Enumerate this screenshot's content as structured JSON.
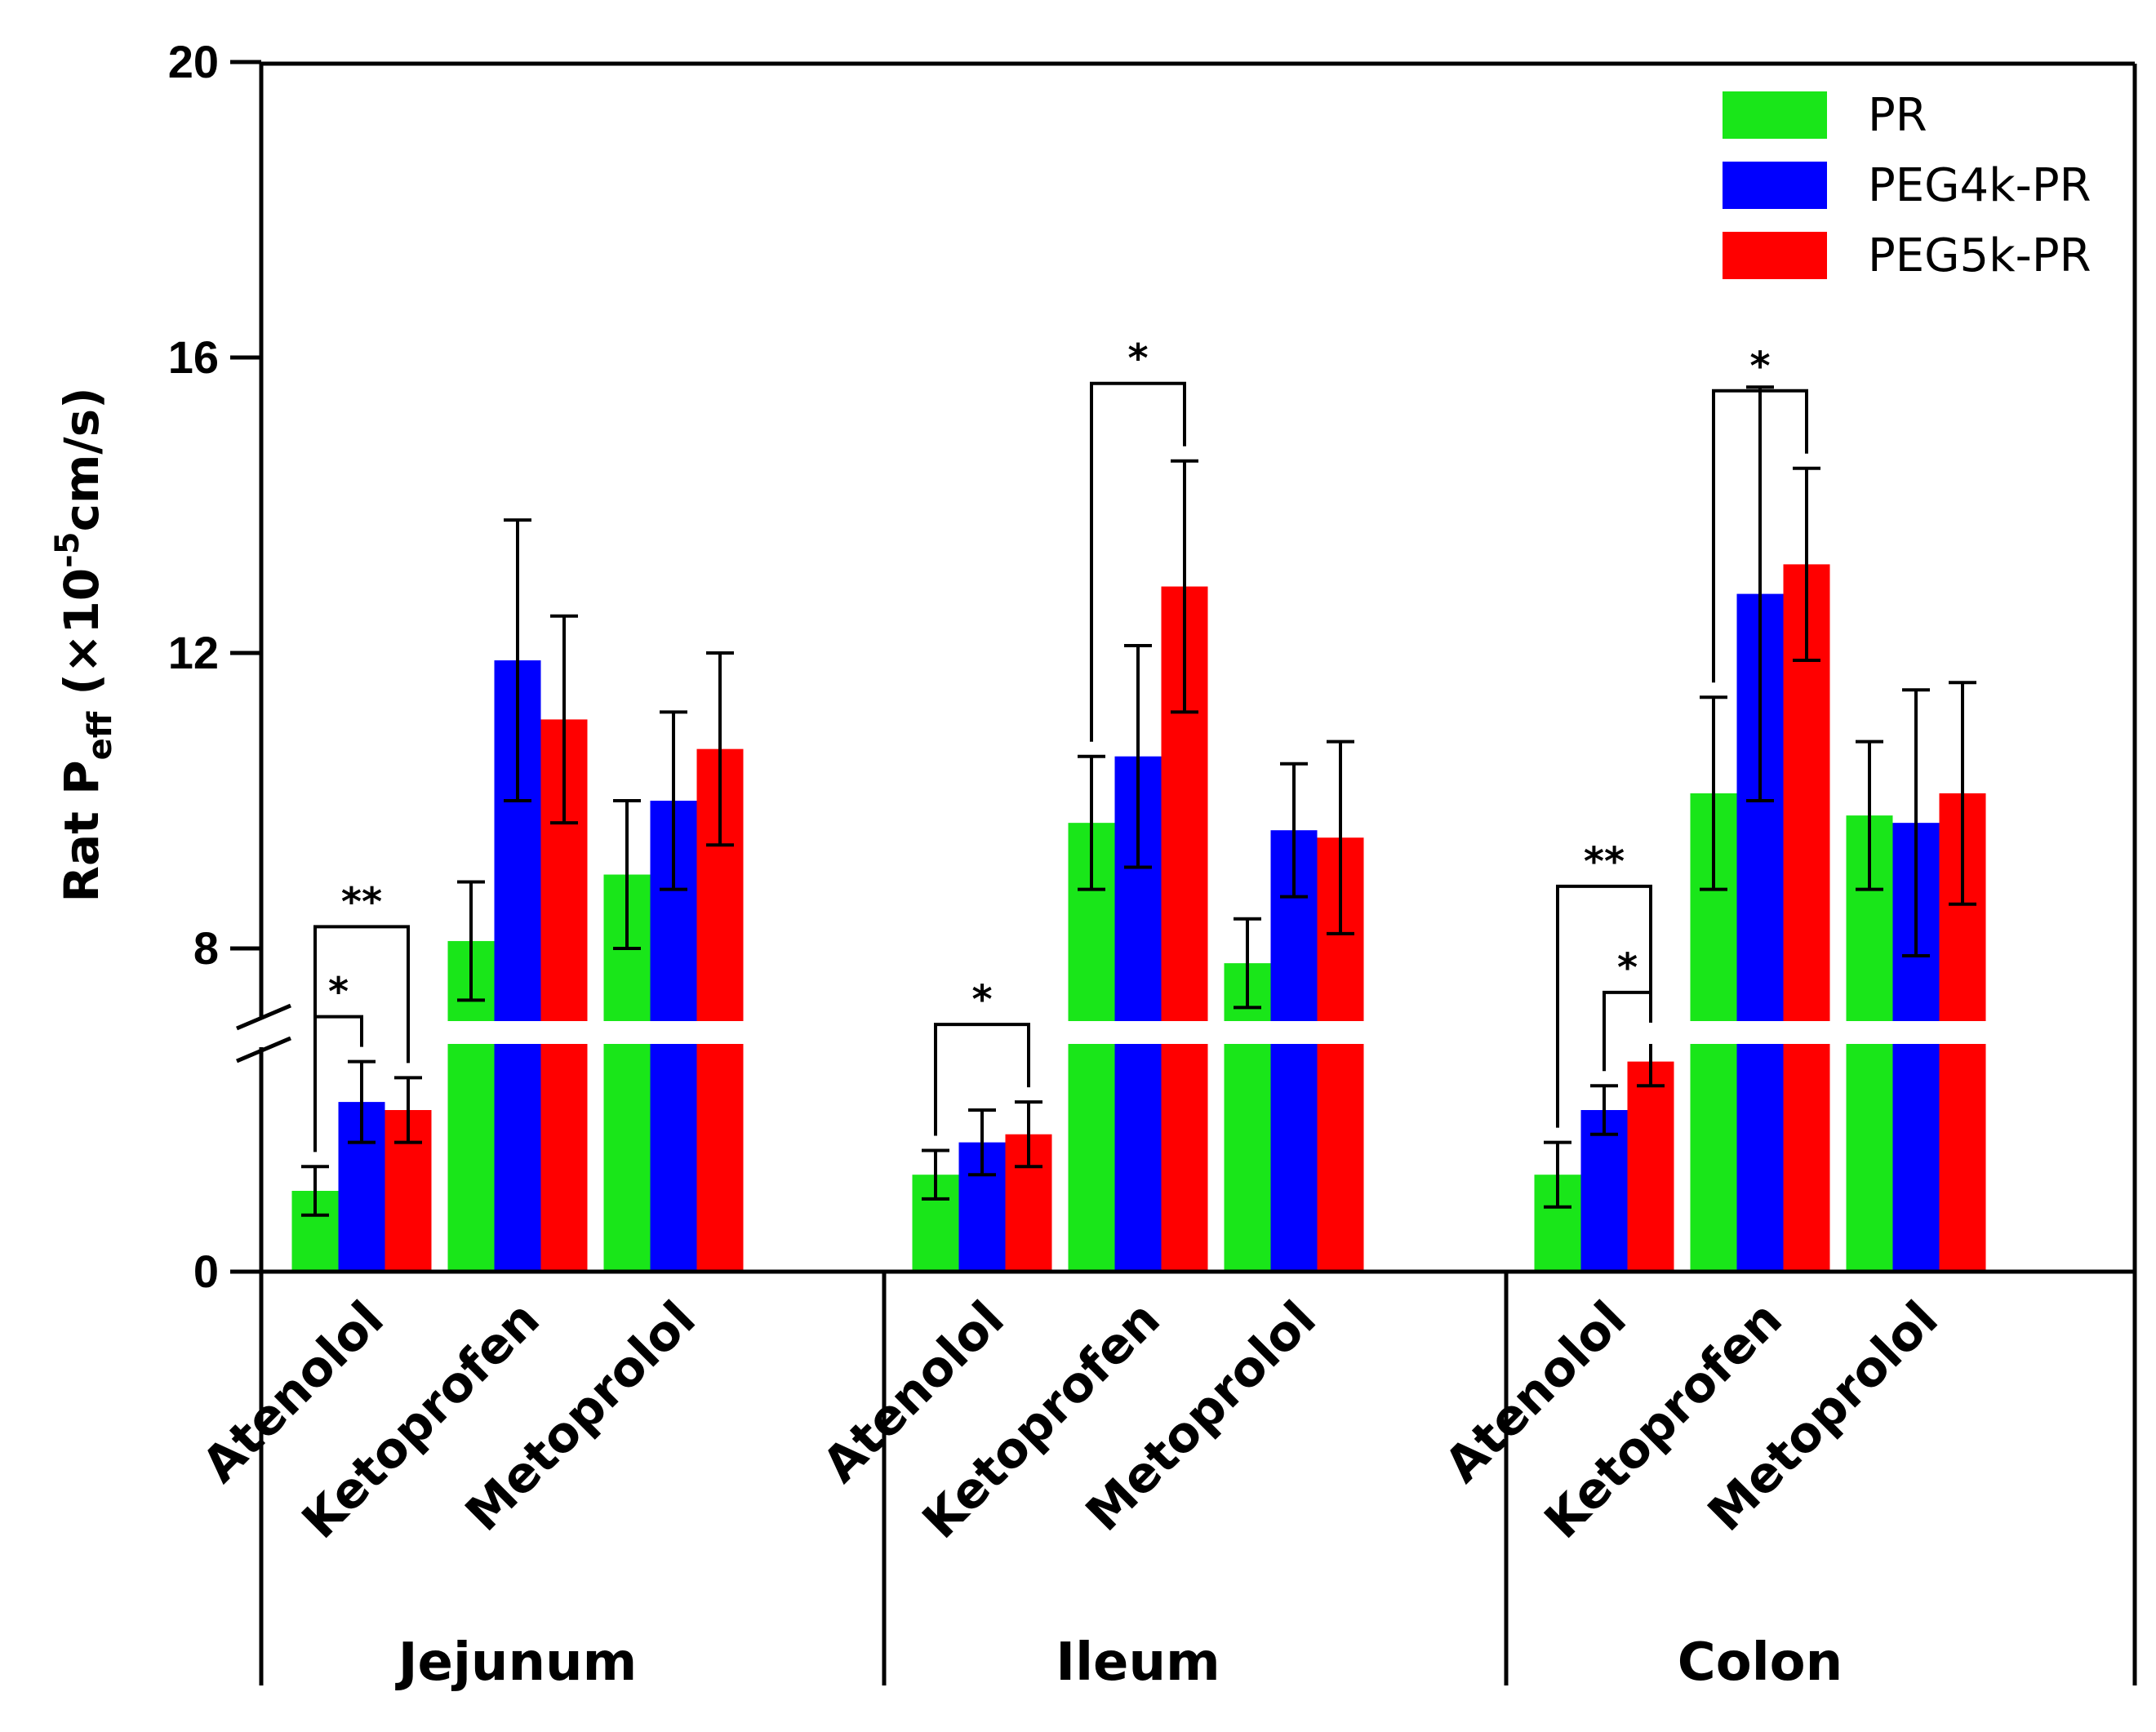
{
  "chart_data": {
    "type": "bar",
    "ylabel_parts": [
      "Rat P",
      "eff",
      " (×10",
      "-5",
      "cm/s)"
    ],
    "ylim": [
      0,
      20
    ],
    "yticks": [
      0,
      8,
      12,
      16,
      20
    ],
    "axis_break": {
      "from": 4,
      "to": 7
    },
    "series_colors": [
      "#19e619",
      "#0000ff",
      "#ff0000"
    ],
    "legend": [
      "PR",
      "PEG4k-PR",
      "PEG5k-PR"
    ],
    "groups": [
      {
        "region": "Jejunum",
        "drugs": [
          {
            "name": "Atenolol",
            "values": [
              1.0,
              2.1,
              2.0
            ],
            "errors": [
              0.3,
              0.5,
              0.4
            ],
            "sig": [
              {
                "label": "*",
                "from": 0,
                "to": 1
              },
              {
                "label": "**",
                "from": 0,
                "to": 2
              }
            ]
          },
          {
            "name": "Ketoprofen",
            "values": [
              8.1,
              11.9,
              11.1
            ],
            "errors": [
              0.8,
              1.9,
              1.4
            ],
            "sig": []
          },
          {
            "name": "Metoprolol",
            "values": [
              9.0,
              10.0,
              10.7
            ],
            "errors": [
              1.0,
              1.2,
              1.3
            ],
            "sig": []
          }
        ]
      },
      {
        "region": "Ileum",
        "drugs": [
          {
            "name": "Atenolol",
            "values": [
              1.2,
              1.6,
              1.7
            ],
            "errors": [
              0.3,
              0.4,
              0.4
            ],
            "sig": [
              {
                "label": "*",
                "from": 0,
                "to": 2
              }
            ]
          },
          {
            "name": "Ketoprofen",
            "values": [
              9.7,
              10.6,
              12.9
            ],
            "errors": [
              0.9,
              1.5,
              1.7
            ],
            "sig": [
              {
                "label": "*",
                "from": 0,
                "to": 2
              }
            ]
          },
          {
            "name": "Metoprolol",
            "values": [
              7.8,
              9.6,
              9.5
            ],
            "errors": [
              0.6,
              0.9,
              1.3
            ],
            "sig": []
          }
        ]
      },
      {
        "region": "Colon",
        "drugs": [
          {
            "name": "Atenolol",
            "values": [
              1.2,
              2.0,
              2.6
            ],
            "errors": [
              0.4,
              0.3,
              0.3
            ],
            "sig": [
              {
                "label": "*",
                "from": 1,
                "to": 2
              },
              {
                "label": "**",
                "from": 0,
                "to": 2
              }
            ]
          },
          {
            "name": "Ketoprofen",
            "values": [
              10.1,
              12.8,
              13.2
            ],
            "errors": [
              1.3,
              2.8,
              1.3
            ],
            "sig": [
              {
                "label": "*",
                "from": 0,
                "to": 2
              }
            ]
          },
          {
            "name": "Metoprolol",
            "values": [
              9.8,
              9.7,
              10.1
            ],
            "errors": [
              1.0,
              1.8,
              1.5
            ],
            "sig": []
          }
        ]
      }
    ]
  }
}
